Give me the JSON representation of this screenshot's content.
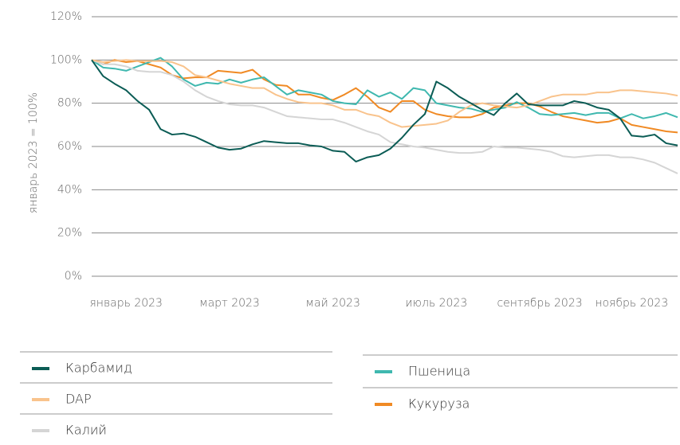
{
  "chart_data": {
    "type": "line",
    "y_label": "январь 2023 = 100%",
    "categories": [
      null,
      null,
      null,
      "январь 2023",
      null,
      null,
      null,
      null,
      null,
      null,
      null,
      null,
      "март 2023",
      null,
      null,
      null,
      null,
      null,
      null,
      null,
      null,
      "май 2023",
      null,
      null,
      null,
      null,
      null,
      null,
      null,
      null,
      "июль 2023",
      null,
      null,
      null,
      null,
      null,
      null,
      null,
      null,
      "сентябрь 2023",
      null,
      null,
      null,
      null,
      null,
      null,
      null,
      "ноябрь 2023",
      null,
      null,
      null,
      null
    ],
    "ylim": [
      0,
      120
    ],
    "yticks": [
      {
        "value": 0,
        "label": "0%"
      },
      {
        "value": 20,
        "label": "20%"
      },
      {
        "value": 40,
        "label": "40%"
      },
      {
        "value": 60,
        "label": "60%"
      },
      {
        "value": 80,
        "label": "80%"
      },
      {
        "value": 100,
        "label": "100%"
      },
      {
        "value": 120,
        "label": "120%"
      }
    ],
    "grid": true,
    "series": [
      {
        "name": "Карбамид",
        "color": "#0b5c55",
        "values": [
          100,
          92.5,
          89,
          86,
          81,
          77,
          68,
          65.5,
          66,
          64.5,
          62,
          59.5,
          58.5,
          59,
          61,
          62.5,
          62,
          61.5,
          61.5,
          60.5,
          60,
          58,
          57.5,
          53,
          55,
          56,
          59,
          64,
          70,
          75,
          90,
          87,
          83,
          80,
          77,
          74.5,
          80,
          84.5,
          79.5,
          79,
          79,
          79,
          81,
          80,
          78,
          77,
          73,
          65,
          64.5,
          65.5,
          61.5,
          60.5
        ]
      },
      {
        "name": "DAP",
        "color": "#f9c38c",
        "values": [
          100,
          99,
          99.5,
          100,
          99.5,
          99.5,
          99.5,
          99,
          97,
          93,
          92,
          90.5,
          89,
          88,
          87,
          87,
          84,
          82,
          80.5,
          80,
          80,
          79,
          77,
          77,
          75,
          74,
          71,
          69,
          69.5,
          70,
          70.5,
          72,
          76,
          79,
          80,
          79,
          78.5,
          78,
          79,
          81,
          83,
          84,
          84,
          84,
          85,
          85,
          86,
          86,
          85.5,
          85,
          84.5,
          83.5
        ]
      },
      {
        "name": "Калий",
        "color": "#d5d5d5",
        "values": [
          100,
          98,
          98,
          97,
          95,
          94.5,
          94.5,
          93,
          90,
          86,
          83,
          81,
          79.5,
          79,
          79,
          78,
          76,
          74,
          73.5,
          73,
          72.5,
          72.5,
          71,
          69,
          67,
          65.5,
          62,
          61,
          60,
          59.5,
          58.5,
          57.5,
          57,
          57,
          57.5,
          60,
          59.5,
          59.5,
          59,
          58.5,
          57.5,
          55.5,
          55,
          55.5,
          56,
          56,
          55,
          55,
          54,
          52.5,
          50,
          47.5
        ]
      },
      {
        "name": "Пшеница",
        "color": "#3fb8af",
        "values": [
          100,
          96.5,
          96,
          95,
          97,
          99,
          101,
          97,
          91,
          88,
          89.5,
          89,
          91,
          89.5,
          91,
          92,
          88,
          84,
          86,
          85,
          84,
          81,
          80,
          79.5,
          86,
          83,
          85,
          82,
          87,
          86,
          80,
          79,
          78,
          77.5,
          76,
          77,
          78,
          80.5,
          78,
          75,
          74.5,
          75,
          75.5,
          74.5,
          75.5,
          75.5,
          73,
          75,
          73,
          74,
          75.5,
          73.5
        ]
      },
      {
        "name": "Кукуруза",
        "color": "#f08a24",
        "values": [
          100,
          98,
          100,
          99,
          99.5,
          98,
          96.5,
          93,
          91.5,
          92,
          92,
          95,
          94.5,
          94,
          95.5,
          91,
          88.5,
          88,
          84,
          84,
          82.5,
          81.5,
          84,
          87,
          83,
          78,
          76,
          81,
          81,
          77,
          75,
          74,
          73.5,
          73.5,
          75,
          78,
          79,
          80,
          80,
          78.5,
          76,
          74,
          73,
          72,
          71,
          71.5,
          73,
          70,
          69,
          68,
          67,
          66.5
        ]
      }
    ]
  }
}
